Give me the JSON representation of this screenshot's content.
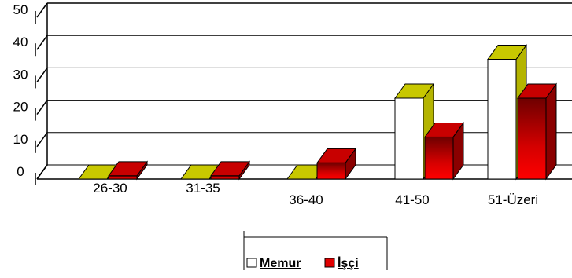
{
  "chart_data": {
    "type": "bar",
    "title": "",
    "xlabel": "",
    "ylabel": "",
    "categories": [
      "26-30",
      "31-35",
      "36-40",
      "41-50",
      "51-Üzeri"
    ],
    "series": [
      {
        "name": "Memur",
        "values": [
          0,
          0,
          0,
          25,
          37
        ]
      },
      {
        "name": "İşçi",
        "values": [
          1,
          1,
          5,
          13,
          25
        ]
      }
    ],
    "ylim": [
      0,
      50
    ],
    "yticks": [
      0,
      10,
      20,
      30,
      40,
      50
    ],
    "grid": true,
    "legend_position": "bottom",
    "colors": {
      "memur_front": "#ffffff",
      "memur_top": "#c8c800",
      "memur_side": "#b4b400",
      "isci_front": "#e00000",
      "isci_top": "#c80000",
      "isci_side": "#8a0000"
    }
  }
}
